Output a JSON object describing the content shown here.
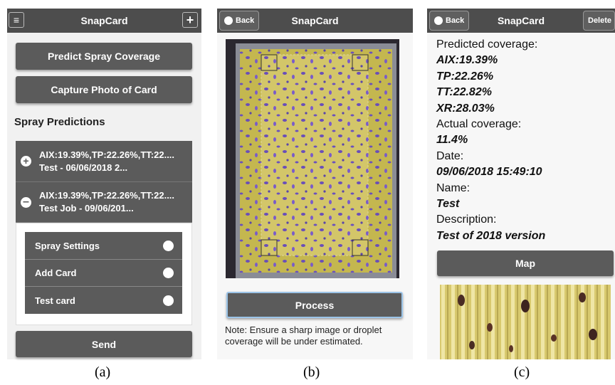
{
  "panels": [
    {
      "caption": "(a)",
      "header": {
        "title": "SnapCard"
      },
      "buttons": [
        "Predict Spray Coverage",
        "Capture Photo of Card"
      ],
      "section_title": "Spray Predictions",
      "predictions": [
        {
          "line1": "AIX:19.39%,TP:22.26%,TT:22....",
          "line2": "Test - 06/06/2018 2..."
        },
        {
          "line1": "AIX:19.39%,TP:22.26%,TT:22....",
          "line2": "Test Job - 09/06/201..."
        }
      ],
      "menu": [
        "Spray Settings",
        "Add Card",
        "Test card"
      ],
      "send": "Send"
    },
    {
      "caption": "(b)",
      "header": {
        "back": "Back",
        "title": "SnapCard"
      },
      "button": "Process",
      "note": "Note: Ensure a sharp image or droplet coverage will be under estimated."
    },
    {
      "caption": "(c)",
      "header": {
        "back": "Back",
        "title": "SnapCard",
        "delete": "Delete"
      },
      "details": [
        {
          "text": "Predicted coverage:",
          "style": "label"
        },
        {
          "text": "AIX:19.39%",
          "style": "value"
        },
        {
          "text": "TP:22.26%",
          "style": "value"
        },
        {
          "text": "TT:22.82%",
          "style": "value"
        },
        {
          "text": "XR:28.03%",
          "style": "value"
        },
        {
          "text": "Actual coverage:",
          "style": "label"
        },
        {
          "text": "11.4%",
          "style": "value"
        },
        {
          "text": "Date:",
          "style": "label"
        },
        {
          "text": "09/06/2018 15:49:10",
          "style": "value"
        },
        {
          "text": "Name:",
          "style": "label"
        },
        {
          "text": "Test",
          "style": "value"
        },
        {
          "text": "Description:",
          "style": "label"
        },
        {
          "text": "Test of 2018 version",
          "style": "value"
        }
      ],
      "button": "Map"
    }
  ]
}
